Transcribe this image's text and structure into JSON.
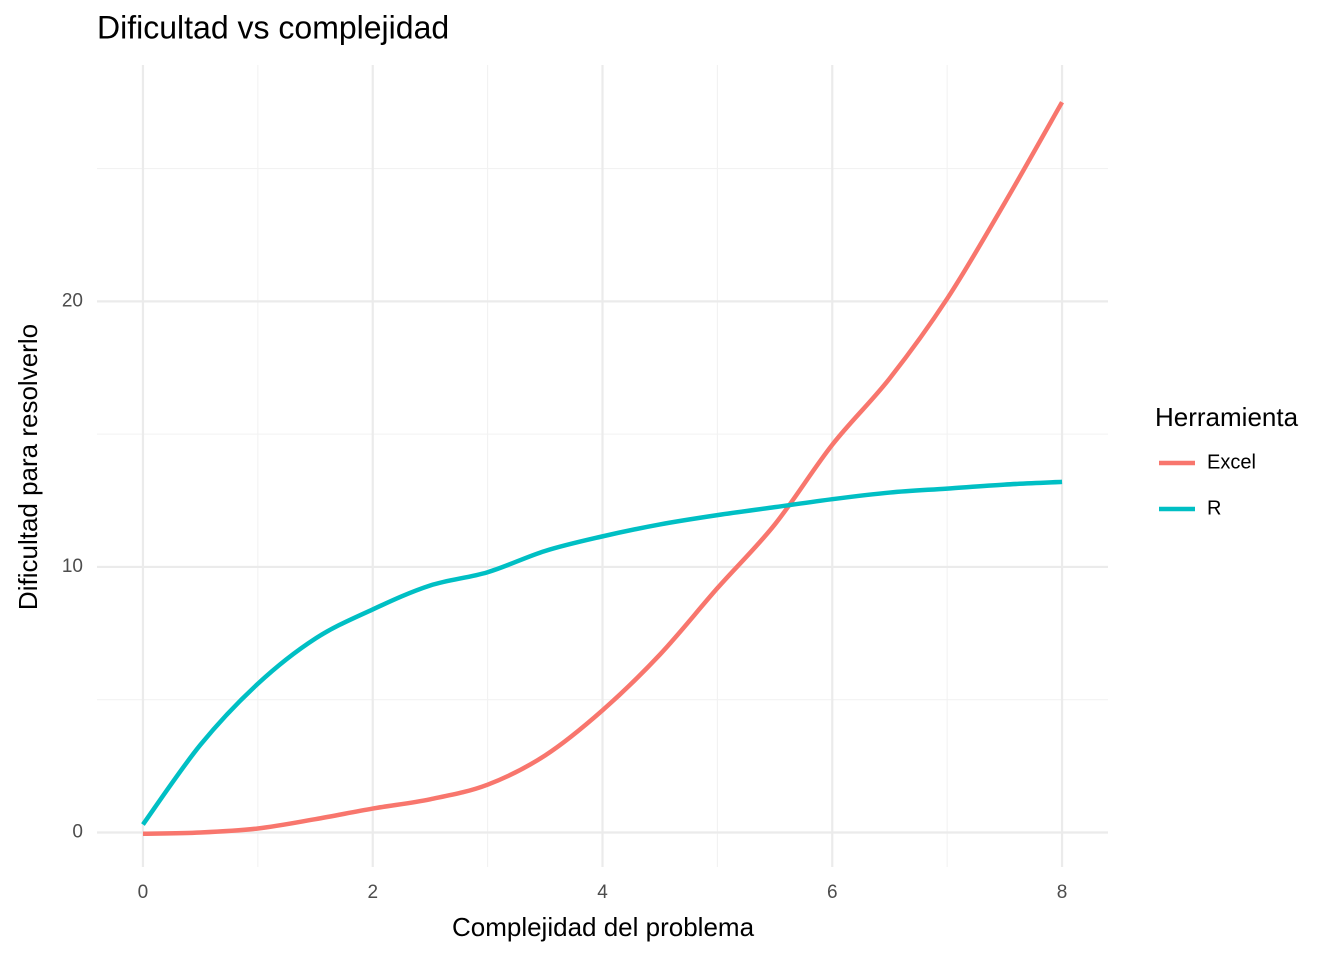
{
  "chart_data": {
    "type": "line",
    "title": "Dificultad vs complejidad",
    "x_label": "Complejidad del problema",
    "y_label": "Dificultad para resolverlo",
    "legend_title": "Herramienta",
    "legend_position": "right",
    "grid": true,
    "x": [
      0,
      0.5,
      1,
      1.5,
      2,
      2.5,
      3,
      3.5,
      4,
      4.5,
      5,
      5.5,
      6,
      6.5,
      7,
      7.5,
      8
    ],
    "series": [
      {
        "name": "Excel",
        "color": "#F8766D",
        "values": [
          -0.05,
          0,
          0.15,
          0.5,
          0.9,
          1.25,
          1.8,
          2.9,
          4.6,
          6.7,
          9.2,
          11.6,
          14.6,
          17.1,
          20.1,
          23.7,
          27.5
        ]
      },
      {
        "name": "R",
        "color": "#00BFC4",
        "values": [
          0.3,
          3.3,
          5.6,
          7.3,
          8.4,
          9.3,
          9.8,
          10.6,
          11.15,
          11.6,
          11.95,
          12.25,
          12.55,
          12.8,
          12.95,
          13.1,
          13.2
        ]
      }
    ],
    "xlim": [
      -0.4,
      8.4
    ],
    "ylim": [
      -1.3,
      28.9
    ],
    "xticks": [
      0,
      2,
      4,
      6,
      8
    ],
    "yticks": [
      0,
      10,
      20
    ],
    "x_minor_ticks": [
      1,
      3,
      5,
      7
    ],
    "y_minor_ticks": [
      5,
      15,
      25
    ]
  }
}
